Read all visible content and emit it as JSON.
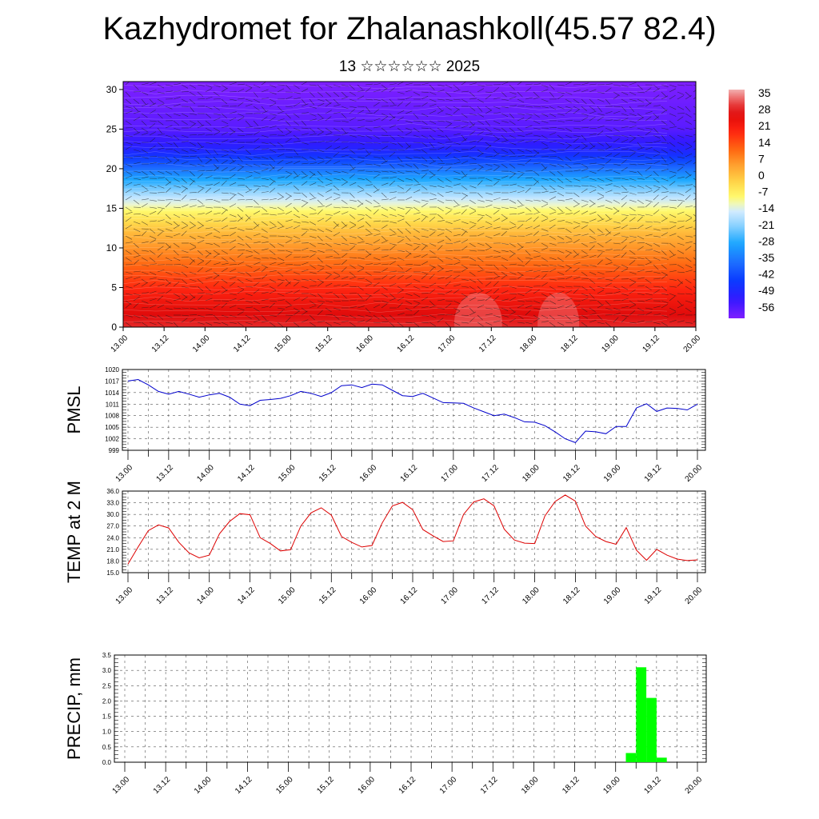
{
  "header": {
    "title": "Kazhydromet for Zhalanashkoll(45.57 82.4)",
    "subtitle": "13 ☆☆☆☆☆☆ 2025"
  },
  "colors": {
    "pmsl_line": "#0000cc",
    "temp_line": "#dd0000",
    "precip_bar": "#00ff00",
    "grid": "#555555"
  },
  "chart_data": [
    {
      "type": "heatmap",
      "name": "cross-section",
      "xticks": [
        "13.00",
        "13.12",
        "14.00",
        "14.12",
        "15.00",
        "15.12",
        "16.00",
        "16.12",
        "17.00",
        "17.12",
        "18.00",
        "18.12",
        "19.00",
        "19.12",
        "20.00"
      ],
      "yticks": [
        "0",
        "5",
        "10",
        "15",
        "20",
        "25",
        "30"
      ],
      "ylim": [
        0,
        31
      ],
      "colorbar": {
        "labels": [
          "35",
          "28",
          "21",
          "14",
          "7",
          "0",
          "-7",
          "-14",
          "-21",
          "-28",
          "-35",
          "-42",
          "-49",
          "-56"
        ],
        "range": [
          -60,
          38
        ]
      },
      "temperature_profile": [
        {
          "z": 0,
          "value": 30
        },
        {
          "z": 4,
          "value": 22
        },
        {
          "z": 8,
          "value": 12
        },
        {
          "z": 12,
          "value": 2
        },
        {
          "z": 14,
          "value": -5
        },
        {
          "z": 16,
          "value": -14
        },
        {
          "z": 19,
          "value": -30
        },
        {
          "z": 22,
          "value": -48
        },
        {
          "z": 25,
          "value": -56
        },
        {
          "z": 31,
          "value": -60
        }
      ],
      "wind_barbs": true
    },
    {
      "type": "line",
      "name": "PMSL",
      "ylabel": "PMSL",
      "ylim": [
        999,
        1020
      ],
      "yticks": [
        "1020",
        "1017",
        "1014",
        "1011",
        "1008",
        "1005",
        "1002",
        "999"
      ],
      "xticks": [
        "13.00",
        "13.12",
        "14.00",
        "14.12",
        "15.00",
        "15.12",
        "16.00",
        "16.12",
        "17.00",
        "17.12",
        "18.00",
        "18.12",
        "19.00",
        "19.12",
        "20.00"
      ],
      "x": [
        0,
        3,
        6,
        9,
        12,
        15,
        18,
        21,
        24,
        27,
        30,
        33,
        36,
        39,
        42,
        45,
        48,
        51,
        54,
        57,
        60,
        63,
        66,
        69,
        72,
        75,
        78,
        81,
        84,
        87,
        90,
        93,
        96,
        99,
        102,
        105,
        108,
        111,
        114,
        117,
        120,
        123,
        126,
        129,
        132,
        135,
        138,
        141,
        144,
        147,
        150,
        153,
        156,
        159,
        162,
        165,
        168
      ],
      "values": [
        1017,
        1017.4,
        1016,
        1014.3,
        1013.6,
        1014.3,
        1013.6,
        1012.8,
        1013.4,
        1013.8,
        1012.8,
        1011,
        1010.6,
        1012,
        1012.2,
        1012.5,
        1013.2,
        1014.3,
        1013.8,
        1013,
        1014,
        1015.8,
        1016,
        1015.3,
        1016.2,
        1016,
        1014.6,
        1013.2,
        1013,
        1013.8,
        1012.6,
        1011.4,
        1011.3,
        1011.2,
        1010,
        1009,
        1008,
        1008.4,
        1007.5,
        1006.4,
        1006.3,
        1005.4,
        1003.8,
        1002,
        1001,
        1004,
        1003.8,
        1003.3,
        1005.2,
        1005.2,
        1010,
        1011.1,
        1009.1,
        1010,
        1009.9,
        1009.5,
        1011
      ]
    },
    {
      "type": "line",
      "name": "TEMP at 2 M",
      "ylabel": "TEMP at 2 M",
      "ylim": [
        15,
        36
      ],
      "yticks": [
        "36.0",
        "33.0",
        "30.0",
        "27.0",
        "24.0",
        "21.0",
        "18.0",
        "15.0"
      ],
      "xticks": [
        "13.00",
        "13.12",
        "14.00",
        "14.12",
        "15.00",
        "15.12",
        "16.00",
        "16.12",
        "17.00",
        "17.12",
        "18.00",
        "18.12",
        "19.00",
        "19.12",
        "20.00"
      ],
      "x": [
        0,
        3,
        6,
        9,
        12,
        15,
        18,
        21,
        24,
        27,
        30,
        33,
        36,
        39,
        42,
        45,
        48,
        51,
        54,
        57,
        60,
        63,
        66,
        69,
        72,
        75,
        78,
        81,
        84,
        87,
        90,
        93,
        96,
        99,
        102,
        105,
        108,
        111,
        114,
        117,
        120,
        123,
        126,
        129,
        132,
        135,
        138,
        141,
        144,
        147,
        150,
        153,
        156,
        159,
        162,
        165,
        168
      ],
      "values": [
        17.2,
        21.6,
        25.8,
        27.3,
        26.5,
        22.8,
        20.1,
        18.8,
        19.5,
        25,
        28.2,
        30.2,
        29.9,
        24,
        22.5,
        20.6,
        20.9,
        27,
        30.4,
        31.7,
        29.8,
        24.3,
        22.8,
        21.6,
        22,
        27.8,
        32.2,
        33.1,
        31.2,
        26.1,
        24.5,
        23,
        23.2,
        30,
        33.2,
        34,
        32.2,
        26.2,
        23.4,
        22.6,
        22.5,
        29.6,
        33.3,
        35,
        33.4,
        27,
        24.3,
        23,
        22.3,
        26.6,
        20.8,
        18.2,
        21,
        19.5,
        18.5,
        18.1,
        18.3
      ]
    },
    {
      "type": "bar",
      "name": "PRECIP, mm",
      "ylabel": "PRECIP, mm",
      "ylim": [
        0,
        3.5
      ],
      "yticks": [
        "3.5",
        "3.0",
        "2.5",
        "2.0",
        "1.5",
        "1.0",
        "0.5",
        "0.0"
      ],
      "xticks": [
        "13.00",
        "13.12",
        "14.00",
        "14.12",
        "15.00",
        "15.12",
        "16.00",
        "16.12",
        "17.00",
        "17.12",
        "18.00",
        "18.12",
        "19.00",
        "19.12",
        "20.00"
      ],
      "bars": [
        {
          "x": 147,
          "width": 3,
          "value": 0.3
        },
        {
          "x": 150,
          "width": 3,
          "value": 3.1
        },
        {
          "x": 153,
          "width": 3,
          "value": 2.1
        },
        {
          "x": 156,
          "width": 3,
          "value": 0.15
        }
      ]
    }
  ]
}
